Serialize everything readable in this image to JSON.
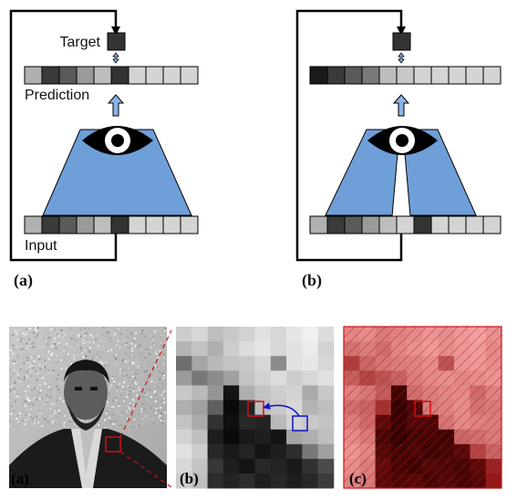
{
  "top_diagrams": [
    {
      "panel_label": "(a)",
      "target_label": "Target",
      "prediction_label": "Prediction",
      "input_label": "Input",
      "target_color": "#333333",
      "prediction_cells": [
        "#b0b0b0",
        "#3a3a3a",
        "#5a5a5a",
        "#9a9a9a",
        "#bdbdbd",
        "#333333",
        "#d4d4d4",
        "#d4d4d4",
        "#d4d4d4",
        "#d4d4d4"
      ],
      "input_cells": [
        "#b0b0b0",
        "#3a3a3a",
        "#5a5a5a",
        "#9a9a9a",
        "#bdbdbd",
        "#333333",
        "#d4d4d4",
        "#d4d4d4",
        "#d4d4d4",
        "#d4d4d4"
      ]
    },
    {
      "panel_label": "(b)",
      "target_color": "#333333",
      "prediction_cells": [
        "#1a1a1a",
        "#3a3a3a",
        "#5a5a5a",
        "#7a7a7a",
        "#bdbdbd",
        "#c8c8c8",
        "#d4d4d4",
        "#d4d4d4",
        "#d4d4d4",
        "#d4d4d4",
        "#d4d4d4"
      ],
      "input_cells": [
        "#b0b0b0",
        "#3a3a3a",
        "#5a5a5a",
        "#9a9a9a",
        "#bdbdbd",
        "#d4d4d4",
        "#333333",
        "#d4d4d4",
        "#d4d4d4",
        "#d4d4d4",
        "#d4d4d4"
      ]
    }
  ],
  "bottom_panels": {
    "labels": [
      "(a)",
      "(b)",
      "(c)"
    ],
    "pixel_grid": [
      [
        205,
        215,
        190,
        200,
        210,
        225,
        215,
        230,
        240,
        220
      ],
      [
        180,
        195,
        175,
        205,
        220,
        230,
        215,
        225,
        235,
        210
      ],
      [
        110,
        165,
        185,
        195,
        200,
        215,
        140,
        225,
        230,
        215
      ],
      [
        155,
        120,
        140,
        160,
        195,
        210,
        220,
        205,
        215,
        225
      ],
      [
        200,
        185,
        150,
        20,
        175,
        195,
        205,
        210,
        170,
        200
      ],
      [
        175,
        160,
        95,
        10,
        35,
        190,
        200,
        215,
        180,
        190
      ],
      [
        195,
        170,
        50,
        15,
        40,
        35,
        185,
        210,
        200,
        195
      ],
      [
        210,
        190,
        30,
        10,
        25,
        30,
        20,
        165,
        175,
        190
      ],
      [
        225,
        205,
        40,
        25,
        35,
        20,
        30,
        45,
        120,
        160
      ],
      [
        215,
        195,
        55,
        30,
        20,
        40,
        35,
        25,
        50,
        75
      ],
      [
        205,
        190,
        45,
        35,
        45,
        30,
        40,
        30,
        40,
        60
      ]
    ],
    "highlight_cell": [
      5,
      4
    ],
    "highlight_color": "#cc1111",
    "reference_color": "#1111cc",
    "overlay_color": "#cc1111"
  }
}
